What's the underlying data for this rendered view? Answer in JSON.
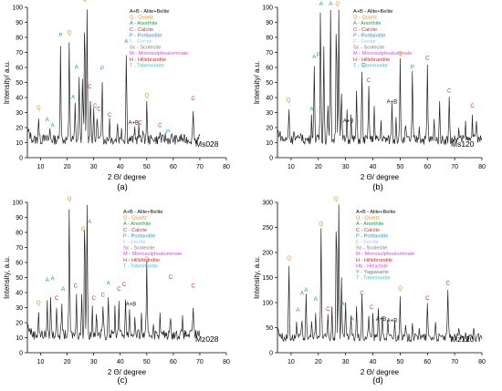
{
  "colors": {
    "A+B": "#111111",
    "Q": "#f28c1b",
    "A": "#1aa35a",
    "C": "#d0312d",
    "P": "#2b8fd6",
    "F": "#a8c8f0",
    "Sc": "#7a7a7a",
    "M": "#e040fb",
    "H": "#d0312d",
    "Hb": "#e040fb",
    "Y": "#7a7a7a",
    "T": "#31c4d8",
    "line": "#222222"
  },
  "legend_full": [
    {
      "code": "A+B",
      "text": "A+B - Alite+Belite"
    },
    {
      "code": "Q",
      "text": "Q - Quartz"
    },
    {
      "code": "A",
      "text": "A - Anorthite"
    },
    {
      "code": "C",
      "text": "C - Calcite"
    },
    {
      "code": "P",
      "text": "P - Portlandite"
    },
    {
      "code": "F",
      "text": "F - Ferrite"
    },
    {
      "code": "Sc",
      "text": "Sc - Scolecite"
    },
    {
      "code": "M",
      "text": "M - Monosulphoaluminate"
    },
    {
      "code": "H",
      "text": "H - Hillebrandite"
    },
    {
      "code": "T",
      "text": "T - Tobermorite"
    }
  ],
  "legend_d": [
    {
      "code": "A+B",
      "text": "A+B - Alite+Belite"
    },
    {
      "code": "Q",
      "text": "Q - Quartz"
    },
    {
      "code": "A",
      "text": "A - Anorthite"
    },
    {
      "code": "C",
      "text": "C - Calcite"
    },
    {
      "code": "P",
      "text": "P - Portlandite"
    },
    {
      "code": "F",
      "text": "F - Ferrite"
    },
    {
      "code": "Sc",
      "text": "Sc - Scolecite"
    },
    {
      "code": "M",
      "text": "M - Monosulphoaluminate"
    },
    {
      "code": "H",
      "text": "H - Hillebrandite"
    },
    {
      "code": "Hb",
      "text": "Hb - Hibschite"
    },
    {
      "code": "Y",
      "text": "Y - Yagawarite"
    },
    {
      "code": "T",
      "text": "T - Tobermorite"
    }
  ],
  "chart_data": [
    {
      "type": "line",
      "panel_label": "(a)",
      "sample": "Ms028",
      "xlabel": "2 Θ/ degree",
      "ylabel": "Intensity/ a.u.",
      "xlim": [
        5,
        80
      ],
      "ylim": [
        0,
        100
      ],
      "xticks": [
        10,
        20,
        30,
        40,
        50,
        60,
        70,
        80
      ],
      "yticks": [
        0,
        10,
        20,
        30,
        40,
        50,
        60,
        70,
        80,
        90,
        100
      ],
      "x_end": 70,
      "baseline": 12,
      "peaks": [
        [
          9.2,
          28
        ],
        [
          11,
          18
        ],
        [
          13.5,
          19
        ],
        [
          17.5,
          76
        ],
        [
          20.8,
          78
        ],
        [
          23,
          35
        ],
        [
          24.5,
          56
        ],
        [
          25.8,
          58
        ],
        [
          26.6,
          100
        ],
        [
          27.5,
          100
        ],
        [
          28.8,
          42
        ],
        [
          30,
          30
        ],
        [
          31.3,
          30
        ],
        [
          33.2,
          54
        ],
        [
          36,
          26
        ],
        [
          39,
          24
        ],
        [
          40.5,
          21
        ],
        [
          42.3,
          72
        ],
        [
          45.5,
          20
        ],
        [
          47,
          20
        ],
        [
          48.5,
          18
        ],
        [
          50,
          36
        ],
        [
          52.5,
          14
        ],
        [
          55,
          17
        ],
        [
          57,
          14
        ],
        [
          59.5,
          14
        ],
        [
          63,
          14
        ],
        [
          67.5,
          34
        ]
      ],
      "labels": [
        [
          "Q",
          9.2,
          31
        ],
        [
          "A",
          12.5,
          23
        ],
        [
          "A",
          14.5,
          19
        ],
        [
          "P",
          17.5,
          79
        ],
        [
          "Q",
          20.8,
          81
        ],
        [
          "A",
          22.2,
          38
        ],
        [
          "A",
          23.5,
          58
        ],
        [
          "Q",
          26.6,
          103
        ],
        [
          "C",
          28.5,
          45
        ],
        [
          "C",
          30.5,
          32
        ],
        [
          "C",
          32,
          30
        ],
        [
          "P",
          33.2,
          57
        ],
        [
          "C",
          36,
          26
        ],
        [
          "A",
          42.3,
          75
        ],
        [
          "A+B",
          45,
          21
        ],
        [
          "C",
          47.5,
          21
        ],
        [
          "Q",
          50,
          39
        ],
        [
          "C",
          55,
          19
        ],
        [
          "P",
          58,
          15
        ],
        [
          "C",
          67.5,
          37
        ]
      ]
    },
    {
      "type": "line",
      "panel_label": "(b)",
      "sample": "Ms120",
      "xlabel": "2 Θ/ degree",
      "ylabel": "Intensity/ a.u.",
      "xlim": [
        5,
        80
      ],
      "ylim": [
        0,
        100
      ],
      "xticks": [
        10,
        20,
        30,
        40,
        50,
        60,
        70,
        80
      ],
      "yticks": [
        0,
        10,
        20,
        30,
        40,
        50,
        60,
        70,
        80,
        90,
        100
      ],
      "x_end": 80,
      "baseline": 12,
      "peaks": [
        [
          9.2,
          34
        ],
        [
          11,
          20
        ],
        [
          13.5,
          19
        ],
        [
          17.5,
          28
        ],
        [
          18.5,
          64
        ],
        [
          20.8,
          100
        ],
        [
          22,
          74
        ],
        [
          23.5,
          38
        ],
        [
          24.5,
          100
        ],
        [
          26.6,
          100
        ],
        [
          27.5,
          100
        ],
        [
          28.5,
          42
        ],
        [
          30.5,
          30
        ],
        [
          32,
          27
        ],
        [
          34,
          44
        ],
        [
          36,
          58
        ],
        [
          38.5,
          50
        ],
        [
          40.5,
          34
        ],
        [
          43,
          24
        ],
        [
          47,
          37
        ],
        [
          48.5,
          28
        ],
        [
          50,
          64
        ],
        [
          52,
          22
        ],
        [
          54.5,
          55
        ],
        [
          57,
          22
        ],
        [
          60,
          61
        ],
        [
          62.5,
          24
        ],
        [
          64.5,
          36
        ],
        [
          68,
          40
        ],
        [
          71.5,
          18
        ],
        [
          74,
          22
        ],
        [
          76.5,
          30
        ],
        [
          78,
          24
        ]
      ],
      "labels": [
        [
          "Q",
          9,
          36
        ],
        [
          "A",
          17.5,
          30
        ],
        [
          "A",
          18.5,
          65
        ],
        [
          "P",
          20,
          66
        ],
        [
          "A",
          21,
          100
        ],
        [
          "A",
          24.5,
          100
        ],
        [
          "Q",
          27,
          100
        ],
        [
          "A+B",
          31,
          22
        ],
        [
          "C",
          36.5,
          59
        ],
        [
          "C",
          38.5,
          49
        ],
        [
          "A+B",
          47,
          35
        ],
        [
          "Q",
          50,
          67
        ],
        [
          "P",
          54.5,
          58
        ],
        [
          "C",
          60,
          64
        ],
        [
          "C",
          68,
          42
        ],
        [
          "C",
          76.5,
          32
        ]
      ]
    },
    {
      "type": "line",
      "panel_label": "(c)",
      "sample": "Mz028",
      "xlabel": "2 Θ/ degree",
      "ylabel": "Intensity, a.u.",
      "xlim": [
        5,
        80
      ],
      "ylim": [
        0,
        100
      ],
      "xticks": [
        10,
        20,
        30,
        40,
        50,
        60,
        70,
        80
      ],
      "yticks": [
        0,
        10,
        20,
        30,
        40,
        50,
        60,
        70,
        80,
        90,
        100
      ],
      "x_end": 70,
      "baseline": 12,
      "peaks": [
        [
          9.2,
          28
        ],
        [
          12.5,
          32
        ],
        [
          13.8,
          36
        ],
        [
          16,
          30
        ],
        [
          18,
          32
        ],
        [
          20.8,
          100
        ],
        [
          23.5,
          37
        ],
        [
          25.5,
          40
        ],
        [
          26.6,
          100
        ],
        [
          27.5,
          100
        ],
        [
          29.5,
          30
        ],
        [
          31,
          28
        ],
        [
          33.5,
          34
        ],
        [
          35.5,
          40
        ],
        [
          38,
          30
        ],
        [
          39.5,
          35
        ],
        [
          42,
          37
        ],
        [
          43.5,
          30
        ],
        [
          45.5,
          22
        ],
        [
          48,
          24
        ],
        [
          50,
          58
        ],
        [
          52.5,
          20
        ],
        [
          55,
          24
        ],
        [
          59,
          26
        ],
        [
          63.5,
          22
        ],
        [
          67.5,
          32
        ]
      ],
      "labels": [
        [
          "Q",
          9.2,
          31
        ],
        [
          "A",
          12.5,
          46
        ],
        [
          "A",
          14.5,
          47
        ],
        [
          "C",
          16,
          34
        ],
        [
          "A",
          18.5,
          40
        ],
        [
          "Q",
          20.8,
          100
        ],
        [
          "C",
          23.2,
          42
        ],
        [
          "Q",
          26,
          80
        ],
        [
          "A",
          28.5,
          85
        ],
        [
          "C",
          30,
          34
        ],
        [
          "C",
          33.5,
          36
        ],
        [
          "A",
          35.5,
          44
        ],
        [
          "C",
          39.5,
          40
        ],
        [
          "C",
          41.5,
          43
        ],
        [
          "A+B",
          44,
          30
        ],
        [
          "Q",
          50,
          60
        ],
        [
          "C",
          59,
          48
        ],
        [
          "C",
          67.5,
          42
        ]
      ]
    },
    {
      "type": "line",
      "panel_label": "(d)",
      "sample": "Mz120",
      "xlabel": "2 Θ/ degree",
      "ylabel": "Intensity, a.u.",
      "xlim": [
        5,
        80
      ],
      "ylim": [
        0,
        300
      ],
      "xticks": [
        10,
        20,
        30,
        40,
        50,
        60,
        70,
        80
      ],
      "yticks": [
        0,
        50,
        100,
        150,
        200,
        250,
        300
      ],
      "x_end": 80,
      "baseline": 30,
      "peaks": [
        [
          9.2,
          180
        ],
        [
          12,
          60
        ],
        [
          14,
          70
        ],
        [
          15.5,
          110
        ],
        [
          17.5,
          65
        ],
        [
          19,
          72
        ],
        [
          21,
          250
        ],
        [
          23.5,
          75
        ],
        [
          25,
          90
        ],
        [
          26.6,
          300
        ],
        [
          27.5,
          300
        ],
        [
          28.5,
          150
        ],
        [
          30,
          95
        ],
        [
          32,
          70
        ],
        [
          34,
          95
        ],
        [
          36,
          110
        ],
        [
          38.5,
          80
        ],
        [
          40,
          80
        ],
        [
          42,
          95
        ],
        [
          43.5,
          75
        ],
        [
          45.5,
          60
        ],
        [
          48,
          60
        ],
        [
          50,
          120
        ],
        [
          52,
          50
        ],
        [
          54.5,
          65
        ],
        [
          57,
          55
        ],
        [
          60,
          100
        ],
        [
          63,
          60
        ],
        [
          67.5,
          130
        ],
        [
          71.5,
          50
        ],
        [
          74,
          45
        ],
        [
          77,
          50
        ]
      ],
      "labels": [
        [
          "Q",
          9.2,
          182
        ],
        [
          "A",
          12.5,
          78
        ],
        [
          "A",
          14,
          112
        ],
        [
          "A",
          15.5,
          118
        ],
        [
          "A",
          19,
          100
        ],
        [
          "Q",
          21,
          250
        ],
        [
          "C",
          23.5,
          80
        ],
        [
          "Q",
          26.5,
          300
        ],
        [
          "A",
          29,
          90
        ],
        [
          "A",
          32.5,
          60
        ],
        [
          "C",
          36,
          112
        ],
        [
          "C",
          39.5,
          84
        ],
        [
          "A+B",
          43,
          60
        ],
        [
          "A+B",
          47,
          57
        ],
        [
          "Q",
          50,
          122
        ],
        [
          "C",
          60,
          102
        ],
        [
          "C",
          67.5,
          132
        ]
      ]
    }
  ]
}
